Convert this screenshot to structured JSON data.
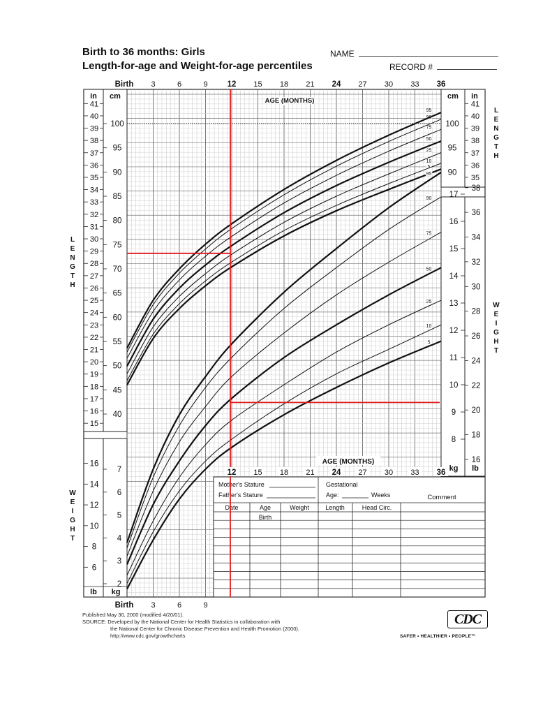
{
  "header": {
    "title_line1": "Birth to 36 months: Girls",
    "title_line2": "Length-for-age and Weight-for-age percentiles",
    "name_label": "NAME",
    "record_label": "RECORD #"
  },
  "chart_data": {
    "type": "line",
    "title": "Birth to 36 months: Girls — Length-for-age and Weight-for-age percentiles",
    "x_axis": {
      "label": "AGE (MONTHS)",
      "range": [
        0,
        36
      ],
      "ticks_top": [
        "Birth",
        "3",
        "6",
        "9",
        "12",
        "15",
        "18",
        "21",
        "24",
        "27",
        "30",
        "33",
        "36"
      ],
      "ticks_bottom_right": [
        "12",
        "15",
        "18",
        "21",
        "24",
        "27",
        "30",
        "33",
        "36"
      ],
      "ticks_bottom_left": [
        "Birth",
        "3",
        "6",
        "9"
      ]
    },
    "length_axis": {
      "cm_label": "cm",
      "in_label": "in",
      "word": "LENGTH",
      "cm_ticks": [
        "100",
        "95",
        "90",
        "85",
        "80",
        "75",
        "70",
        "65",
        "60",
        "55",
        "50",
        "45",
        "40"
      ],
      "in_ticks_left": [
        "41",
        "40",
        "39",
        "38",
        "37",
        "36",
        "35",
        "34",
        "33",
        "32",
        "31",
        "30",
        "29",
        "28",
        "27",
        "26",
        "25",
        "24",
        "23",
        "22",
        "21",
        "20",
        "19",
        "18",
        "17",
        "16",
        "15"
      ],
      "cm_ticks_right": [
        "100",
        "95",
        "90"
      ],
      "in_ticks_right": [
        "41",
        "40",
        "39",
        "38",
        "37",
        "36",
        "35"
      ]
    },
    "weight_axis": {
      "kg_label": "kg",
      "lb_label": "lb",
      "word": "WEIGHT",
      "kg_ticks_right": [
        "17",
        "16",
        "15",
        "14",
        "13",
        "12",
        "11",
        "10",
        "9",
        "8"
      ],
      "lb_ticks_right": [
        "38",
        "36",
        "34",
        "32",
        "30",
        "28",
        "26",
        "24",
        "22",
        "20",
        "18",
        "16"
      ],
      "kg_ticks_left": [
        "7",
        "6",
        "5",
        "4",
        "3",
        "2"
      ],
      "lb_ticks_left": [
        "16",
        "14",
        "12",
        "10",
        "8",
        "6"
      ]
    },
    "length_series": [
      {
        "name": "5",
        "x": [
          0,
          3,
          6,
          9,
          12,
          18,
          24,
          30,
          36
        ],
        "values": [
          46.0,
          55.6,
          61.8,
          66.5,
          70.4,
          76.8,
          82.0,
          86.4,
          90.6
        ]
      },
      {
        "name": "10",
        "x": [
          0,
          3,
          6,
          9,
          12,
          18,
          24,
          30,
          36
        ],
        "values": [
          46.9,
          56.5,
          62.8,
          67.5,
          71.4,
          77.9,
          83.1,
          87.6,
          91.8
        ]
      },
      {
        "name": "25",
        "x": [
          0,
          3,
          6,
          9,
          12,
          18,
          24,
          30,
          36
        ],
        "values": [
          48.3,
          58.0,
          64.3,
          69.0,
          73.0,
          79.6,
          85.0,
          89.6,
          94.0
        ]
      },
      {
        "name": "50",
        "x": [
          0,
          3,
          6,
          9,
          12,
          18,
          24,
          30,
          36
        ],
        "values": [
          49.9,
          59.6,
          66.0,
          70.8,
          74.8,
          81.6,
          87.2,
          92.0,
          96.4
        ]
      },
      {
        "name": "75",
        "x": [
          0,
          3,
          6,
          9,
          12,
          18,
          24,
          30,
          36
        ],
        "values": [
          51.5,
          61.2,
          67.7,
          72.6,
          76.7,
          83.6,
          89.3,
          94.3,
          98.8
        ]
      },
      {
        "name": "90",
        "x": [
          0,
          3,
          6,
          9,
          12,
          18,
          24,
          30,
          36
        ],
        "values": [
          52.8,
          62.6,
          69.1,
          74.1,
          78.3,
          85.3,
          91.2,
          96.3,
          100.9
        ]
      },
      {
        "name": "95",
        "x": [
          0,
          3,
          6,
          9,
          12,
          18,
          24,
          30,
          36
        ],
        "values": [
          53.6,
          63.5,
          70.0,
          75.1,
          79.3,
          86.4,
          92.4,
          97.6,
          102.3
        ]
      }
    ],
    "weight_series": [
      {
        "name": "5",
        "x": [
          0,
          3,
          6,
          9,
          12,
          18,
          24,
          30,
          36
        ],
        "values": [
          2.5,
          4.3,
          5.8,
          6.9,
          7.7,
          8.9,
          9.9,
          10.8,
          11.6
        ]
      },
      {
        "name": "10",
        "x": [
          0,
          3,
          6,
          9,
          12,
          18,
          24,
          30,
          36
        ],
        "values": [
          2.7,
          4.6,
          6.1,
          7.2,
          8.0,
          9.3,
          10.4,
          11.3,
          12.2
        ]
      },
      {
        "name": "25",
        "x": [
          0,
          3,
          6,
          9,
          12,
          18,
          24,
          30,
          36
        ],
        "values": [
          3.0,
          5.0,
          6.6,
          7.8,
          8.7,
          10.0,
          11.2,
          12.2,
          13.1
        ]
      },
      {
        "name": "50",
        "x": [
          0,
          3,
          6,
          9,
          12,
          18,
          24,
          30,
          36
        ],
        "values": [
          3.4,
          5.6,
          7.2,
          8.5,
          9.5,
          11.0,
          12.2,
          13.3,
          14.3
        ]
      },
      {
        "name": "75",
        "x": [
          0,
          3,
          6,
          9,
          12,
          18,
          24,
          30,
          36
        ],
        "values": [
          3.7,
          6.1,
          7.9,
          9.2,
          10.3,
          11.9,
          13.3,
          14.5,
          15.6
        ]
      },
      {
        "name": "90",
        "x": [
          0,
          3,
          6,
          9,
          12,
          18,
          24,
          30,
          36
        ],
        "values": [
          4.0,
          6.6,
          8.5,
          9.9,
          11.0,
          12.8,
          14.3,
          15.7,
          16.9
        ]
      },
      {
        "name": "95",
        "x": [
          0,
          3,
          6,
          9,
          12,
          18,
          24,
          30,
          36
        ],
        "values": [
          4.2,
          6.9,
          8.9,
          10.3,
          11.5,
          13.4,
          15.0,
          16.5,
          17.8
        ]
      }
    ],
    "annotations": {
      "red_vertical_age_months": 12,
      "red_length_cm": 73.2,
      "red_weight_kg": 9.35
    }
  },
  "record_table": {
    "mothers_stature": "Mother's Stature",
    "fathers_stature": "Father's Stature",
    "gestational": "Gestational",
    "age_label": "Age:",
    "weeks_label": "Weeks",
    "comment": "Comment",
    "columns": [
      "Date",
      "Age",
      "Weight",
      "Length",
      "Head Circ."
    ],
    "first_row_age": "Birth"
  },
  "footer": {
    "published": "Published May 30, 2000 (modified 4/20/01).",
    "source": "SOURCE: Developed by the National Center for Health Statistics in collaboration with",
    "source2": "the National Center for Chronic Disease Prevention and Health Promotion (2000).",
    "url": "http://www.cdc.gov/growthcharts"
  },
  "logo": {
    "text": "CDC",
    "tagline": "SAFER • HEALTHIER • PEOPLE™"
  }
}
